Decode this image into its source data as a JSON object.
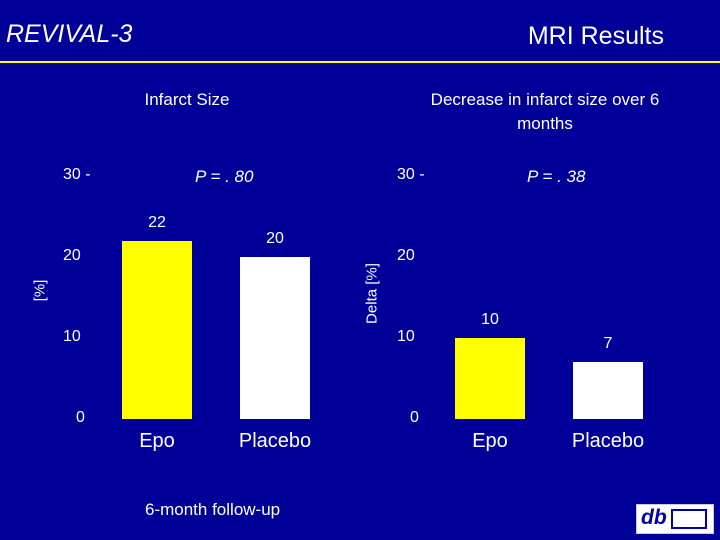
{
  "slide": {
    "title": "REVIVAL-3",
    "heading": "MRI Results",
    "footnote": "6-month follow-up"
  },
  "colors": {
    "background": "#000099",
    "epo": "#ffff00",
    "placebo": "#ffffff",
    "rule": "#ffff00"
  },
  "logo": {
    "icon": "db-tum-logo-icon"
  },
  "chart_data": [
    {
      "type": "bar",
      "title": "Infarct Size",
      "annotation": "P = . 80",
      "ylabel": "[%]",
      "ylim": [
        0,
        30
      ],
      "yticks": [
        "0",
        "10",
        "20",
        "30 -"
      ],
      "categories": [
        "Epo",
        "Placebo"
      ],
      "values": [
        22,
        20
      ],
      "value_labels": [
        "22",
        "20"
      ]
    },
    {
      "type": "bar",
      "title": "Decrease in infarct size over 6 months",
      "annotation": "P = . 38",
      "ylabel": "Delta [%]",
      "ylim": [
        0,
        30
      ],
      "yticks": [
        "0",
        "10",
        "20",
        "30 -"
      ],
      "categories": [
        "Epo",
        "Placebo"
      ],
      "values": [
        10,
        7
      ],
      "value_labels": [
        "10",
        "7"
      ]
    }
  ]
}
